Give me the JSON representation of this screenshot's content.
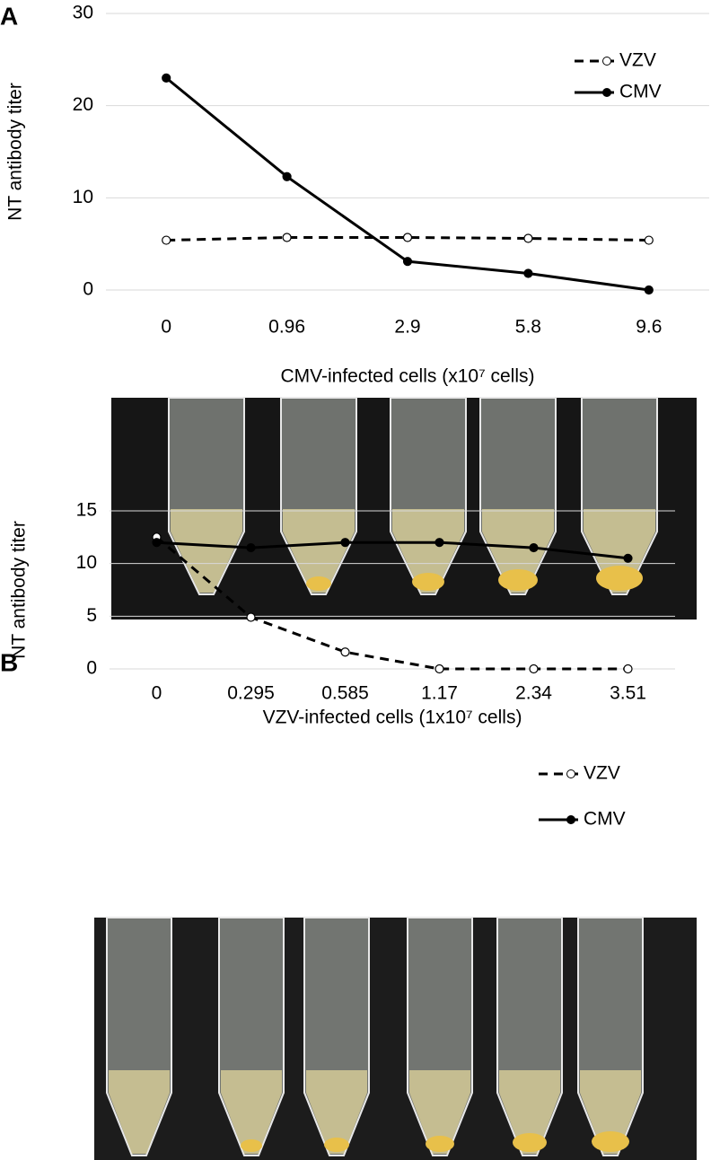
{
  "chart_data": [
    {
      "type": "line",
      "label": "A",
      "x_label": "CMV-infected cells (x10⁷ cells)",
      "y_label": "NT antibody titer",
      "categories": [
        "0",
        "0.96",
        "2.9",
        "5.8",
        "9.6"
      ],
      "series": [
        {
          "name": "VZV",
          "color": "#000000",
          "line_style": "dashed",
          "marker": "open",
          "values": [
            5.4,
            5.7,
            5.7,
            5.6,
            5.4
          ]
        },
        {
          "name": "CMV",
          "color": "#000000",
          "line_style": "solid",
          "marker": "filled",
          "values": [
            23,
            12.3,
            3.1,
            1.8,
            0
          ]
        }
      ],
      "ylim": [
        0,
        30
      ],
      "yticks": [
        0,
        10,
        20,
        30
      ],
      "grid": true,
      "legend": "upper right"
    },
    {
      "type": "line",
      "label": "B",
      "x_label": "VZV-infected cells (1x10⁷ cells)",
      "y_label": "NT antibody titer",
      "categories": [
        "0",
        "0.295",
        "0.585",
        "1.17",
        "2.34",
        "3.51"
      ],
      "series": [
        {
          "name": "VZV",
          "color": "#000000",
          "line_style": "dashed",
          "marker": "open",
          "values": [
            12.5,
            4.9,
            1.6,
            0,
            0,
            0
          ]
        },
        {
          "name": "CMV",
          "color": "#000000",
          "line_style": "solid",
          "marker": "filled",
          "values": [
            12,
            11.5,
            12,
            12,
            11.5,
            10.5
          ]
        }
      ],
      "ylim": [
        0,
        15
      ],
      "yticks": [
        0,
        5,
        10,
        15
      ],
      "grid": true,
      "legend": "right"
    }
  ]
}
